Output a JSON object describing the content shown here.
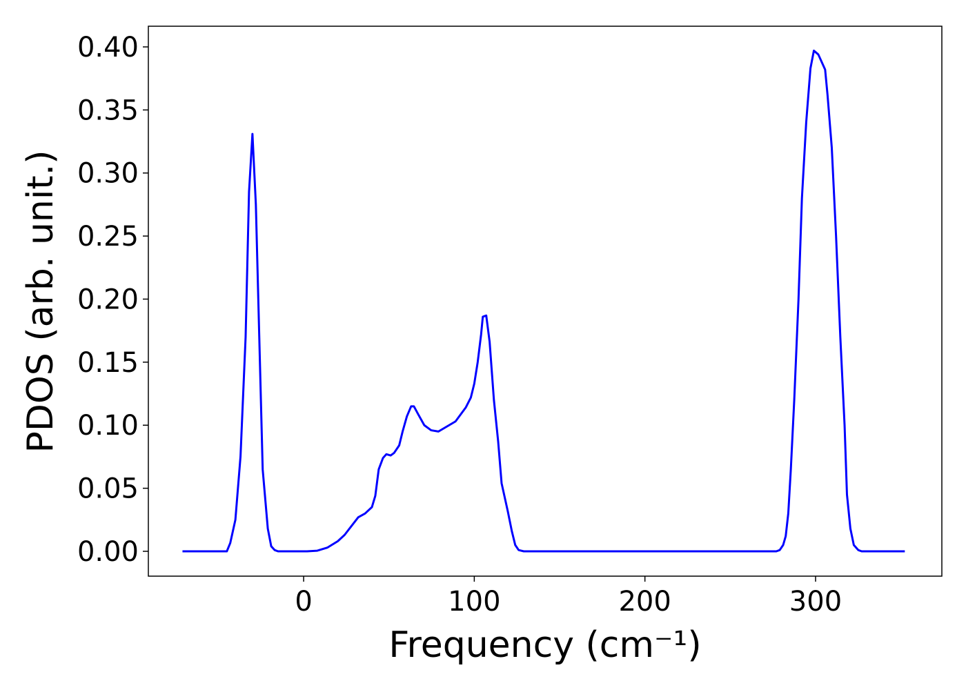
{
  "chart_data": {
    "type": "line",
    "xlabel": "Frequency (cm⁻¹)",
    "ylabel": "PDOS (arb. unit.)",
    "xlim": [
      -91,
      374
    ],
    "ylim": [
      -0.0197,
      0.4164
    ],
    "xticks": [
      0,
      100,
      200,
      300
    ],
    "yticks": [
      {
        "value": 0,
        "label": "0.00"
      },
      {
        "value": 0.05,
        "label": "0.05"
      },
      {
        "value": 0.1,
        "label": "0.10"
      },
      {
        "value": 0.15,
        "label": "0.15"
      },
      {
        "value": 0.2,
        "label": "0.20"
      },
      {
        "value": 0.25,
        "label": "0.25"
      },
      {
        "value": 0.3,
        "label": "0.30"
      },
      {
        "value": 0.35,
        "label": "0.35"
      },
      {
        "value": 0.4,
        "label": "0.40"
      }
    ],
    "series": [
      {
        "color": "#0000ff",
        "x": [
          -71,
          -45,
          -43,
          -40,
          -37,
          -34,
          -32,
          -30,
          -28,
          -26,
          -24,
          -21,
          -19,
          -17,
          -15,
          2,
          8,
          14,
          20,
          24,
          28,
          32,
          36,
          40,
          42,
          44,
          46.5,
          48.5,
          51,
          53,
          56,
          58,
          60.5,
          63,
          64.6,
          67,
          70.7,
          74.7,
          79,
          89,
          95,
          98,
          100,
          102,
          104,
          105,
          107,
          109,
          111.5,
          114,
          116,
          119.6,
          122,
          124,
          126,
          129,
          277,
          279,
          281,
          282.5,
          284,
          285.5,
          287.5,
          290,
          292,
          294.5,
          297,
          299,
          301.6,
          303.6,
          305.6,
          307,
          309.5,
          312,
          314.5,
          317,
          318.4,
          320.4,
          322.4,
          325,
          327,
          352.3
        ],
        "values": [
          0,
          0,
          0.0066,
          0.025,
          0.075,
          0.17,
          0.285,
          0.331,
          0.275,
          0.17,
          0.065,
          0.018,
          0.004,
          0.001,
          0,
          0,
          0.0005,
          0.003,
          0.008,
          0.013,
          0.02,
          0.027,
          0.03,
          0.035,
          0.044,
          0.065,
          0.074,
          0.077,
          0.076,
          0.078,
          0.084,
          0.095,
          0.107,
          0.115,
          0.115,
          0.109,
          0.1,
          0.096,
          0.095,
          0.103,
          0.114,
          0.122,
          0.133,
          0.15,
          0.172,
          0.186,
          0.187,
          0.166,
          0.12,
          0.087,
          0.054,
          0.032,
          0.016,
          0.005,
          0.001,
          0,
          0,
          0.001,
          0.005,
          0.012,
          0.03,
          0.065,
          0.12,
          0.2,
          0.28,
          0.34,
          0.383,
          0.397,
          0.394,
          0.388,
          0.382,
          0.362,
          0.32,
          0.25,
          0.17,
          0.1,
          0.045,
          0.018,
          0.005,
          0.001,
          0,
          0
        ]
      }
    ]
  }
}
